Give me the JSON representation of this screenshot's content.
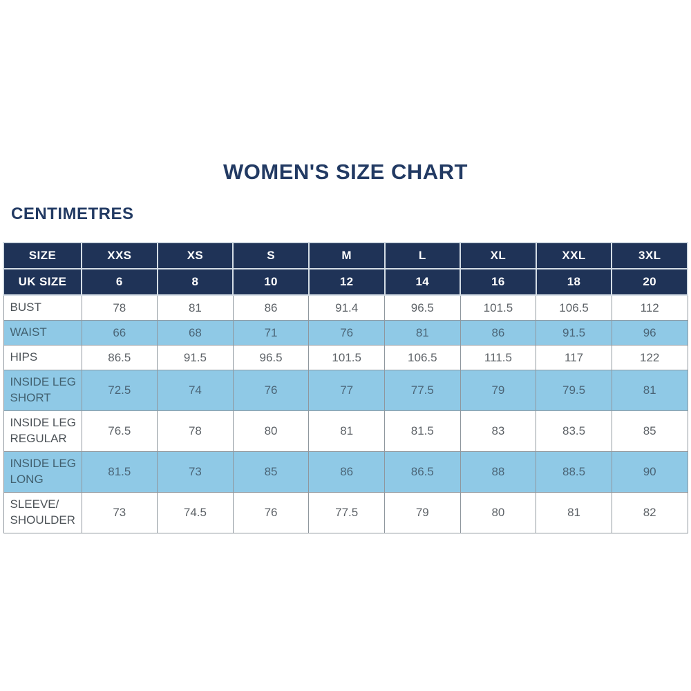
{
  "title": "WOMEN'S SIZE CHART",
  "unit_label": "CENTIMETRES",
  "theme": {
    "header_bg": "#1f3357",
    "alt_row_bg": "#8fc9e6",
    "title_color": "#223a63",
    "value_color": "#5d6267",
    "alt_value_color": "#4b6577",
    "border_color": "#8f979e"
  },
  "chart_data": {
    "type": "table",
    "title": "WOMEN'S SIZE CHART",
    "unit": "CENTIMETRES",
    "size_row": {
      "label": "SIZE",
      "cells": [
        "XXS",
        "XS",
        "S",
        "M",
        "L",
        "XL",
        "XXL",
        "3XL"
      ]
    },
    "uk_size_row": {
      "label": "UK SIZE",
      "cells": [
        6,
        8,
        10,
        12,
        14,
        16,
        18,
        20
      ]
    },
    "rows": [
      {
        "label": "BUST",
        "values": [
          78,
          81,
          86,
          91.4,
          96.5,
          101.5,
          106.5,
          112
        ]
      },
      {
        "label": "WAIST",
        "values": [
          66,
          68,
          71,
          76,
          81,
          86,
          91.5,
          96
        ]
      },
      {
        "label": "HIPS",
        "values": [
          86.5,
          91.5,
          96.5,
          101.5,
          106.5,
          111.5,
          117,
          122
        ]
      },
      {
        "label": "INSIDE LEG SHORT",
        "values": [
          72.5,
          74,
          76,
          77,
          77.5,
          79,
          79.5,
          81
        ]
      },
      {
        "label": "INSIDE LEG REGULAR",
        "values": [
          76.5,
          78,
          80,
          81,
          81.5,
          83,
          83.5,
          85
        ]
      },
      {
        "label": "INSIDE LEG LONG",
        "values": [
          81.5,
          73,
          85,
          86,
          86.5,
          88,
          88.5,
          90
        ]
      },
      {
        "label": "SLEEVE/ SHOULDER",
        "values": [
          73,
          74.5,
          76,
          77.5,
          79,
          80,
          81,
          82
        ]
      }
    ]
  }
}
